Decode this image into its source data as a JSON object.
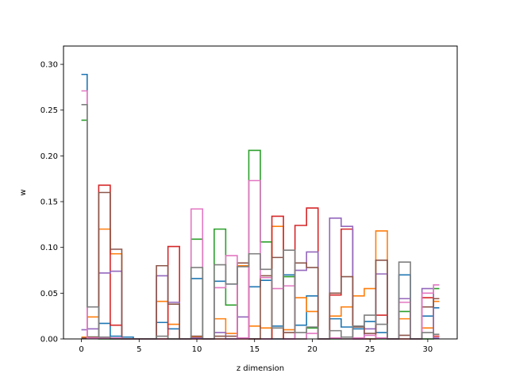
{
  "chart_data": {
    "type": "line",
    "title": "",
    "xlabel": "z dimension",
    "ylabel": "w",
    "xlim": [
      -1.55,
      32.55
    ],
    "ylim": [
      0,
      0.32
    ],
    "xticks": [
      0,
      5,
      10,
      15,
      20,
      25,
      30
    ],
    "yticks": [
      0.0,
      0.05,
      0.1,
      0.15,
      0.2,
      0.25,
      0.3
    ],
    "xtick_labels": [
      "0",
      "5",
      "10",
      "15",
      "20",
      "25",
      "30"
    ],
    "ytick_labels": [
      "0.00",
      "0.05",
      "0.10",
      "0.15",
      "0.20",
      "0.25",
      "0.30"
    ],
    "grid": false,
    "legend": "none",
    "drawstyle": "steps-mid",
    "x": [
      0,
      1,
      2,
      3,
      4,
      5,
      6,
      7,
      8,
      9,
      10,
      11,
      12,
      13,
      14,
      15,
      16,
      17,
      18,
      19,
      20,
      21,
      22,
      23,
      24,
      25,
      26,
      27,
      28,
      29,
      30,
      31
    ],
    "series": [
      {
        "color": "#1f77b4",
        "values": [
          0.289,
          0.002,
          0.017,
          0.003,
          0.002,
          0,
          0,
          0.018,
          0.011,
          0,
          0.066,
          0,
          0.063,
          0.06,
          0.001,
          0.057,
          0.064,
          0.014,
          0.07,
          0.015,
          0.047,
          0,
          0.022,
          0.013,
          0.011,
          0.019,
          0.007,
          0,
          0.07,
          0,
          0.025,
          0.034
        ]
      },
      {
        "color": "#ff7f0e",
        "values": [
          0.002,
          0.024,
          0.12,
          0.093,
          0,
          0,
          0,
          0.041,
          0.016,
          0,
          0.002,
          0,
          0.022,
          0.006,
          0.08,
          0.014,
          0.012,
          0.123,
          0.01,
          0.045,
          0.03,
          0,
          0.025,
          0.035,
          0.047,
          0.055,
          0.118,
          0,
          0.022,
          0,
          0.012,
          0.041
        ]
      },
      {
        "color": "#2ca02c",
        "values": [
          0.239,
          0.002,
          0,
          0,
          0,
          0,
          0,
          0,
          0,
          0,
          0.109,
          0,
          0.12,
          0.037,
          0.001,
          0.206,
          0.106,
          0,
          0.068,
          0,
          0.012,
          0,
          0,
          0,
          0,
          0,
          0,
          0,
          0.03,
          0,
          0,
          0.055
        ]
      },
      {
        "color": "#d62728",
        "values": [
          0.001,
          0.001,
          0.168,
          0.015,
          0,
          0,
          0,
          0,
          0.101,
          0,
          0,
          0,
          0,
          0,
          0,
          0,
          0,
          0.134,
          0,
          0.124,
          0.143,
          0,
          0.048,
          0.12,
          0,
          0,
          0.026,
          0,
          0,
          0,
          0.045,
          0.003
        ]
      },
      {
        "color": "#9467bd",
        "values": [
          0.01,
          0.011,
          0.072,
          0.074,
          0,
          0,
          0,
          0.069,
          0.04,
          0,
          0.001,
          0,
          0.007,
          0,
          0.024,
          0,
          0,
          0,
          0,
          0.075,
          0.095,
          0,
          0.132,
          0.123,
          0,
          0.011,
          0.071,
          0,
          0.044,
          0,
          0.055,
          0.001
        ]
      },
      {
        "color": "#8c564b",
        "values": [
          0.001,
          0.002,
          0.16,
          0.098,
          0,
          0,
          0,
          0.08,
          0.038,
          0,
          0.003,
          0,
          0.003,
          0.003,
          0.083,
          0,
          0.069,
          0.089,
          0.007,
          0.083,
          0.078,
          0,
          0.05,
          0.068,
          0.013,
          0.006,
          0.086,
          0,
          0.004,
          0,
          0.035,
          0.044
        ]
      },
      {
        "color": "#e377c2",
        "values": [
          0.271,
          0.001,
          0.001,
          0.001,
          0,
          0,
          0,
          0,
          0,
          0,
          0.142,
          0,
          0.056,
          0.091,
          0.001,
          0.173,
          0.067,
          0.055,
          0.058,
          0,
          0.006,
          0,
          0.001,
          0,
          0.001,
          0.004,
          0.001,
          0,
          0.04,
          0,
          0.05,
          0.059
        ]
      },
      {
        "color": "#7f7f7f",
        "values": [
          0.256,
          0.035,
          0.002,
          0,
          0,
          0,
          0,
          0.003,
          0,
          0,
          0.078,
          0,
          0.081,
          0.06,
          0.079,
          0.093,
          0.076,
          0.012,
          0.097,
          0.007,
          0.013,
          0,
          0.009,
          0.002,
          0.014,
          0.026,
          0.016,
          0,
          0.084,
          0,
          0.007,
          0.005
        ]
      }
    ]
  }
}
